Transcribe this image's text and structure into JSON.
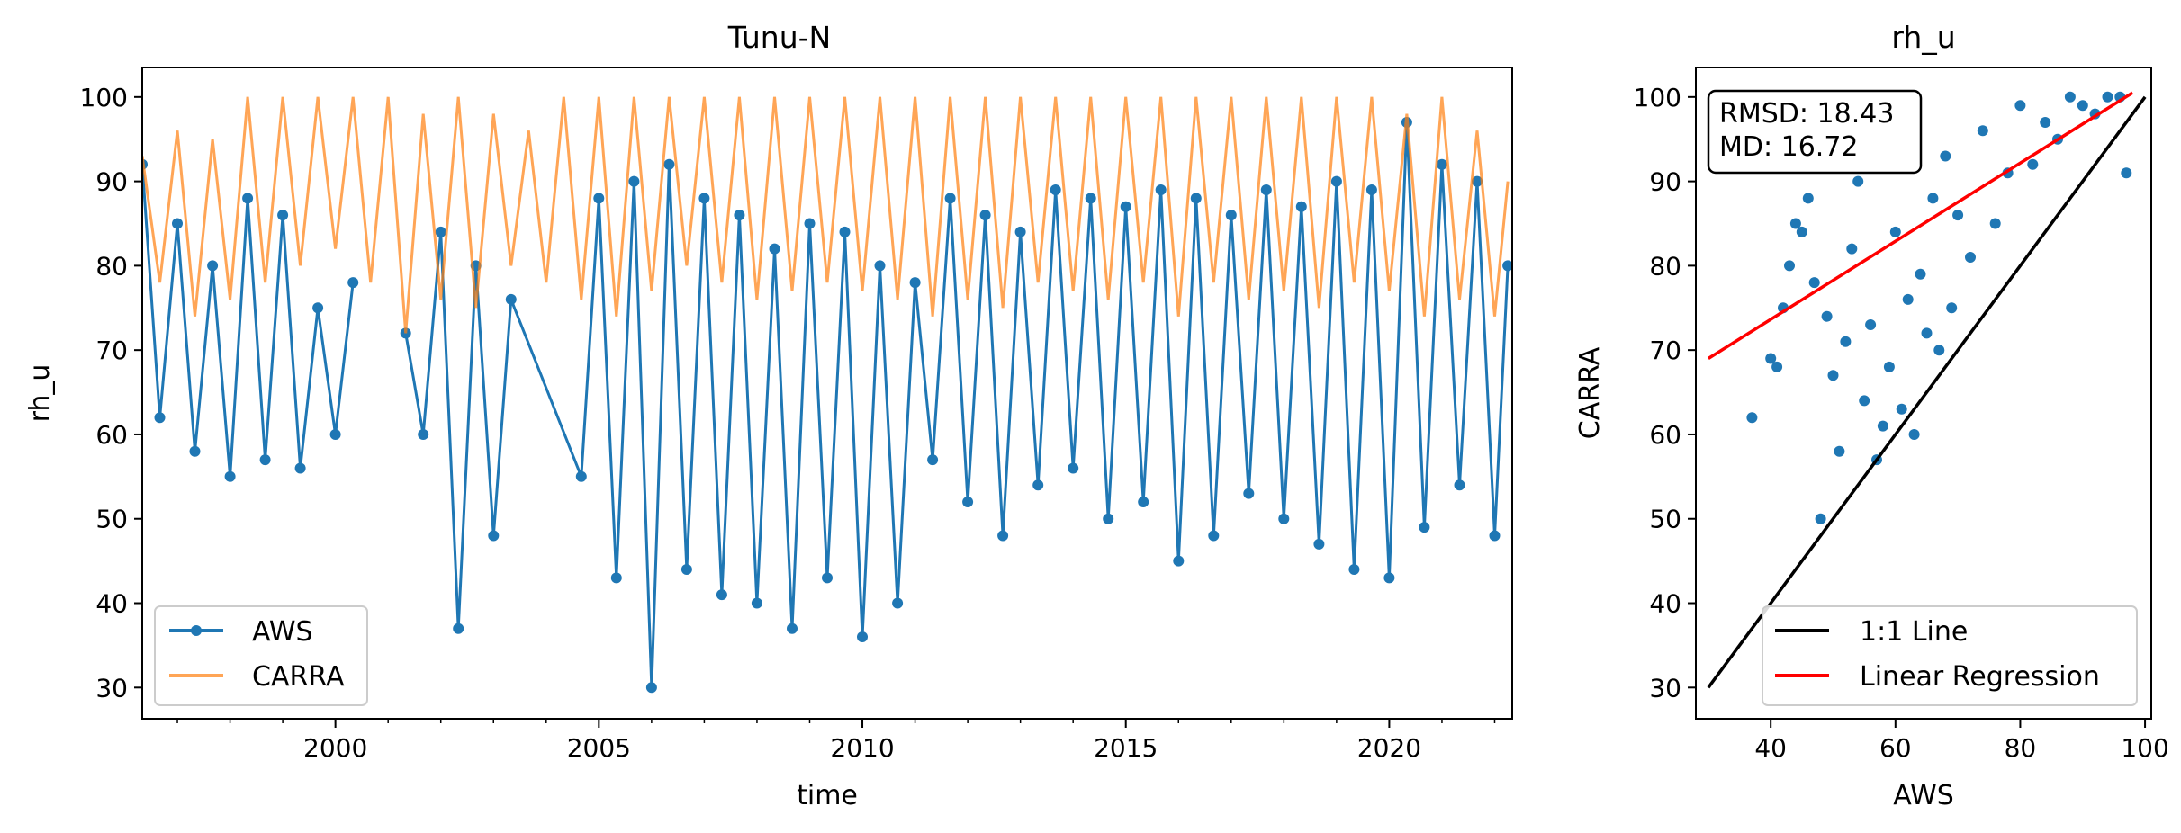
{
  "chart_data": [
    {
      "type": "line",
      "title": "Tunu-N",
      "xlabel": "time",
      "ylabel": "rh_u",
      "xlim": [
        "1996-05-01",
        "2022-05-01"
      ],
      "ylim": [
        26.3,
        103.5
      ],
      "x_ticks": [
        "2000",
        "2005",
        "2010",
        "2015",
        "2020"
      ],
      "y_ticks": [
        30,
        40,
        50,
        60,
        70,
        80,
        90,
        100
      ],
      "legend": "lower-left",
      "series": [
        {
          "name": "AWS",
          "color": "#1f77b4",
          "marker": "circle",
          "x": [
            "1996-05",
            "1996-09",
            "1997-01",
            "1997-05",
            "1997-09",
            "1998-01",
            "1998-05",
            "1998-09",
            "1999-01",
            "1999-05",
            "1999-09",
            "2000-01",
            "2000-05",
            "2001-01",
            "2001-05",
            "2001-09",
            "2002-01",
            "2002-05",
            "2002-09",
            "2003-01",
            "2003-05",
            "2004-09",
            "2005-01",
            "2005-05",
            "2005-09",
            "2006-01",
            "2006-05",
            "2006-09",
            "2007-01",
            "2007-05",
            "2007-09",
            "2008-01",
            "2008-05",
            "2008-09",
            "2009-01",
            "2009-05",
            "2009-09",
            "2010-01",
            "2010-05",
            "2010-09",
            "2011-01",
            "2011-05",
            "2011-09",
            "2012-01",
            "2012-05",
            "2012-09",
            "2013-01",
            "2013-05",
            "2013-09",
            "2014-01",
            "2014-05",
            "2014-09",
            "2015-01",
            "2015-05",
            "2015-09",
            "2016-01",
            "2016-05",
            "2016-09",
            "2017-01",
            "2017-05",
            "2017-09",
            "2018-01",
            "2018-05",
            "2018-09",
            "2019-01",
            "2019-05",
            "2019-09",
            "2020-01",
            "2020-05",
            "2020-09",
            "2021-01",
            "2021-05",
            "2021-09",
            "2022-01",
            "2022-04"
          ],
          "y": [
            92,
            62,
            85,
            58,
            80,
            55,
            88,
            57,
            86,
            56,
            75,
            60,
            78,
            null,
            72,
            60,
            84,
            37,
            80,
            48,
            76,
            55,
            88,
            43,
            90,
            30,
            92,
            44,
            88,
            41,
            86,
            40,
            82,
            37,
            85,
            43,
            84,
            36,
            80,
            40,
            78,
            57,
            88,
            52,
            86,
            48,
            84,
            54,
            89,
            56,
            88,
            50,
            87,
            52,
            89,
            45,
            88,
            48,
            86,
            53,
            89,
            50,
            87,
            47,
            90,
            44,
            89,
            43,
            97,
            49,
            92,
            54,
            90,
            48,
            80
          ]
        },
        {
          "name": "CARRA",
          "color": "#ff7f0e",
          "x": [
            "1996-05",
            "1996-09",
            "1997-01",
            "1997-05",
            "1997-09",
            "1998-01",
            "1998-05",
            "1998-09",
            "1999-01",
            "1999-05",
            "1999-09",
            "2000-01",
            "2000-05",
            "2000-09",
            "2001-01",
            "2001-05",
            "2001-09",
            "2002-01",
            "2002-05",
            "2002-09",
            "2003-01",
            "2003-05",
            "2003-09",
            "2004-01",
            "2004-05",
            "2004-09",
            "2005-01",
            "2005-05",
            "2005-09",
            "2006-01",
            "2006-05",
            "2006-09",
            "2007-01",
            "2007-05",
            "2007-09",
            "2008-01",
            "2008-05",
            "2008-09",
            "2009-01",
            "2009-05",
            "2009-09",
            "2010-01",
            "2010-05",
            "2010-09",
            "2011-01",
            "2011-05",
            "2011-09",
            "2012-01",
            "2012-05",
            "2012-09",
            "2013-01",
            "2013-05",
            "2013-09",
            "2014-01",
            "2014-05",
            "2014-09",
            "2015-01",
            "2015-05",
            "2015-09",
            "2016-01",
            "2016-05",
            "2016-09",
            "2017-01",
            "2017-05",
            "2017-09",
            "2018-01",
            "2018-05",
            "2018-09",
            "2019-01",
            "2019-05",
            "2019-09",
            "2020-01",
            "2020-05",
            "2020-09",
            "2021-01",
            "2021-05",
            "2021-09",
            "2022-01",
            "2022-04"
          ],
          "y": [
            93,
            78,
            96,
            74,
            95,
            76,
            100,
            78,
            100,
            80,
            100,
            82,
            100,
            78,
            100,
            72,
            98,
            76,
            100,
            75,
            98,
            80,
            96,
            78,
            100,
            76,
            100,
            74,
            100,
            77,
            100,
            80,
            100,
            78,
            100,
            76,
            100,
            77,
            100,
            78,
            100,
            77,
            100,
            76,
            100,
            74,
            100,
            76,
            100,
            75,
            100,
            78,
            100,
            77,
            100,
            76,
            100,
            78,
            100,
            74,
            100,
            78,
            100,
            76,
            100,
            77,
            100,
            75,
            100,
            78,
            100,
            77,
            98,
            74,
            100,
            76,
            96,
            74,
            90
          ]
        }
      ]
    },
    {
      "type": "scatter",
      "title": "rh_u",
      "xlabel": "AWS",
      "ylabel": "CARRA",
      "xlim": [
        28,
        101
      ],
      "ylim": [
        26.3,
        103.5
      ],
      "x_ticks": [
        40,
        60,
        80,
        100
      ],
      "y_ticks": [
        30,
        40,
        50,
        60,
        70,
        80,
        90,
        100
      ],
      "legend": "lower-right",
      "stats_box": {
        "line1": "RMSD: 18.43",
        "line2": "MD: 16.72"
      },
      "lines": [
        {
          "name": "1:1 Line",
          "color": "#000000",
          "x": [
            30,
            100
          ],
          "y": [
            30,
            100
          ]
        },
        {
          "name": "Linear Regression",
          "color": "#ff0000",
          "x": [
            30,
            98
          ],
          "y": [
            69,
            100.5
          ]
        }
      ],
      "points_color": "#1f77b4",
      "points": [
        [
          37,
          62
        ],
        [
          40,
          69
        ],
        [
          41,
          68
        ],
        [
          42,
          75
        ],
        [
          43,
          80
        ],
        [
          44,
          85
        ],
        [
          45,
          84
        ],
        [
          46,
          88
        ],
        [
          47,
          78
        ],
        [
          48,
          50
        ],
        [
          49,
          74
        ],
        [
          50,
          67
        ],
        [
          51,
          58
        ],
        [
          52,
          71
        ],
        [
          53,
          82
        ],
        [
          54,
          90
        ],
        [
          55,
          64
        ],
        [
          56,
          73
        ],
        [
          57,
          57
        ],
        [
          58,
          61
        ],
        [
          59,
          68
        ],
        [
          60,
          84
        ],
        [
          61,
          63
        ],
        [
          62,
          76
        ],
        [
          63,
          60
        ],
        [
          64,
          79
        ],
        [
          65,
          72
        ],
        [
          66,
          88
        ],
        [
          67,
          70
        ],
        [
          68,
          93
        ],
        [
          69,
          75
        ],
        [
          70,
          86
        ],
        [
          72,
          81
        ],
        [
          74,
          96
        ],
        [
          76,
          85
        ],
        [
          78,
          91
        ],
        [
          80,
          99
        ],
        [
          82,
          92
        ],
        [
          84,
          97
        ],
        [
          86,
          95
        ],
        [
          88,
          100
        ],
        [
          90,
          99
        ],
        [
          92,
          98
        ],
        [
          94,
          100
        ],
        [
          96,
          100
        ],
        [
          97,
          91
        ]
      ]
    }
  ]
}
